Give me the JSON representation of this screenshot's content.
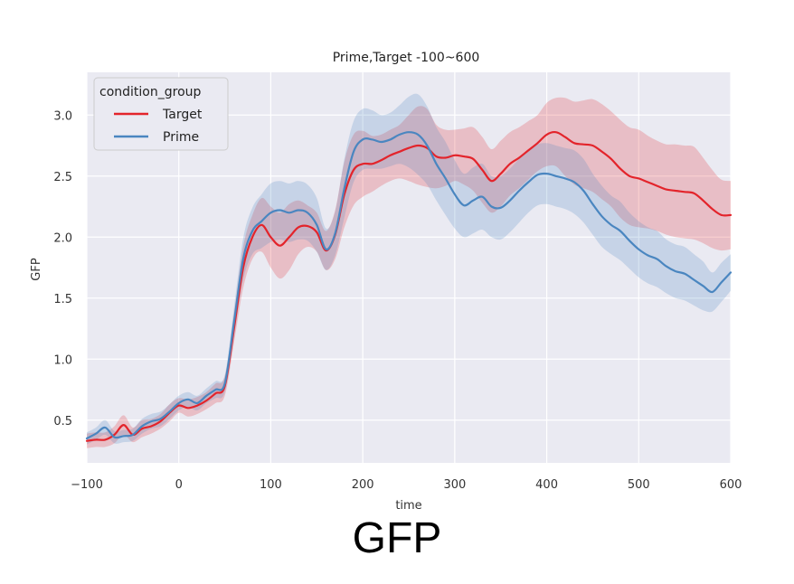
{
  "caption": "GFP",
  "chart_data": {
    "type": "line",
    "title": "Prime,Target -100~600",
    "xlabel": "time",
    "ylabel": "GFP",
    "xlim": [
      -100,
      600
    ],
    "ylim": [
      0.15,
      3.35
    ],
    "xticks": [
      -100,
      0,
      100,
      200,
      300,
      400,
      500,
      600
    ],
    "xtick_labels": [
      "−100",
      "0",
      "100",
      "200",
      "300",
      "400",
      "500",
      "600"
    ],
    "yticks": [
      0.5,
      1.0,
      1.5,
      2.0,
      2.5,
      3.0
    ],
    "ytick_labels": [
      "0.5",
      "1.0",
      "1.5",
      "2.0",
      "2.5",
      "3.0"
    ],
    "grid": true,
    "background": "#eaeaf2",
    "legend": {
      "title": "condition_group",
      "placement": "top-left"
    },
    "series": [
      {
        "name": "Target",
        "color": "#e3242b",
        "x": [
          -100,
          -90,
          -80,
          -70,
          -60,
          -50,
          -40,
          -30,
          -20,
          -10,
          0,
          10,
          20,
          30,
          40,
          50,
          60,
          70,
          80,
          90,
          100,
          110,
          120,
          130,
          140,
          150,
          160,
          170,
          180,
          190,
          200,
          210,
          220,
          230,
          240,
          250,
          260,
          270,
          280,
          290,
          300,
          310,
          320,
          330,
          340,
          350,
          360,
          370,
          380,
          390,
          400,
          410,
          420,
          430,
          440,
          450,
          460,
          470,
          480,
          490,
          500,
          510,
          520,
          530,
          540,
          550,
          560,
          570,
          580,
          590,
          600
        ],
        "values": [
          0.33,
          0.34,
          0.34,
          0.38,
          0.46,
          0.38,
          0.43,
          0.45,
          0.49,
          0.56,
          0.62,
          0.6,
          0.62,
          0.66,
          0.72,
          0.78,
          1.25,
          1.75,
          2.0,
          2.1,
          2.0,
          1.93,
          2.0,
          2.08,
          2.09,
          2.04,
          1.89,
          2.02,
          2.35,
          2.55,
          2.6,
          2.6,
          2.63,
          2.67,
          2.7,
          2.73,
          2.75,
          2.73,
          2.66,
          2.65,
          2.67,
          2.66,
          2.64,
          2.55,
          2.46,
          2.52,
          2.6,
          2.65,
          2.71,
          2.77,
          2.84,
          2.86,
          2.82,
          2.77,
          2.76,
          2.75,
          2.7,
          2.64,
          2.56,
          2.5,
          2.48,
          2.45,
          2.42,
          2.39,
          2.38,
          2.37,
          2.36,
          2.3,
          2.23,
          2.18,
          2.18
        ],
        "lower": [
          0.27,
          0.28,
          0.28,
          0.31,
          0.38,
          0.32,
          0.36,
          0.39,
          0.43,
          0.49,
          0.56,
          0.53,
          0.55,
          0.59,
          0.64,
          0.7,
          1.13,
          1.58,
          1.82,
          1.88,
          1.75,
          1.66,
          1.73,
          1.86,
          1.92,
          1.88,
          1.73,
          1.82,
          2.08,
          2.26,
          2.33,
          2.37,
          2.42,
          2.46,
          2.48,
          2.46,
          2.43,
          2.41,
          2.4,
          2.42,
          2.46,
          2.43,
          2.38,
          2.28,
          2.2,
          2.25,
          2.34,
          2.4,
          2.47,
          2.54,
          2.58,
          2.58,
          2.5,
          2.43,
          2.4,
          2.37,
          2.31,
          2.25,
          2.16,
          2.1,
          2.08,
          2.07,
          2.05,
          2.02,
          2.0,
          1.99,
          1.98,
          1.95,
          1.91,
          1.89,
          1.9
        ],
        "upper": [
          0.39,
          0.4,
          0.4,
          0.45,
          0.54,
          0.44,
          0.5,
          0.51,
          0.55,
          0.63,
          0.68,
          0.67,
          0.69,
          0.73,
          0.8,
          0.86,
          1.37,
          1.92,
          2.18,
          2.32,
          2.25,
          2.2,
          2.27,
          2.3,
          2.26,
          2.2,
          2.05,
          2.22,
          2.62,
          2.84,
          2.87,
          2.83,
          2.84,
          2.88,
          2.92,
          3.0,
          3.07,
          3.05,
          2.92,
          2.88,
          2.88,
          2.89,
          2.9,
          2.82,
          2.72,
          2.79,
          2.86,
          2.9,
          2.95,
          3.0,
          3.1,
          3.14,
          3.14,
          3.11,
          3.12,
          3.13,
          3.09,
          3.03,
          2.96,
          2.9,
          2.88,
          2.83,
          2.79,
          2.76,
          2.76,
          2.75,
          2.74,
          2.65,
          2.55,
          2.47,
          2.46
        ]
      },
      {
        "name": "Prime",
        "color": "#4a86c0",
        "x": [
          -100,
          -90,
          -80,
          -70,
          -60,
          -50,
          -40,
          -30,
          -20,
          -10,
          0,
          10,
          20,
          30,
          40,
          50,
          60,
          70,
          80,
          90,
          100,
          110,
          120,
          130,
          140,
          150,
          160,
          170,
          180,
          190,
          200,
          210,
          220,
          230,
          240,
          250,
          260,
          270,
          280,
          290,
          300,
          310,
          320,
          330,
          340,
          350,
          360,
          370,
          380,
          390,
          400,
          410,
          420,
          430,
          440,
          450,
          460,
          470,
          480,
          490,
          500,
          510,
          520,
          530,
          540,
          550,
          560,
          570,
          580,
          590,
          600
        ],
        "values": [
          0.35,
          0.39,
          0.44,
          0.36,
          0.37,
          0.38,
          0.45,
          0.49,
          0.51,
          0.57,
          0.64,
          0.67,
          0.64,
          0.7,
          0.75,
          0.8,
          1.3,
          1.82,
          2.05,
          2.13,
          2.2,
          2.22,
          2.2,
          2.22,
          2.2,
          2.1,
          1.9,
          2.03,
          2.4,
          2.7,
          2.8,
          2.8,
          2.78,
          2.8,
          2.84,
          2.86,
          2.84,
          2.75,
          2.6,
          2.48,
          2.35,
          2.26,
          2.3,
          2.33,
          2.25,
          2.24,
          2.3,
          2.38,
          2.45,
          2.51,
          2.52,
          2.5,
          2.48,
          2.45,
          2.38,
          2.27,
          2.17,
          2.1,
          2.05,
          1.97,
          1.9,
          1.85,
          1.82,
          1.76,
          1.72,
          1.7,
          1.65,
          1.6,
          1.55,
          1.63,
          1.71
        ],
        "lower": [
          0.3,
          0.34,
          0.38,
          0.31,
          0.32,
          0.33,
          0.39,
          0.43,
          0.45,
          0.51,
          0.58,
          0.61,
          0.58,
          0.64,
          0.68,
          0.73,
          1.18,
          1.65,
          1.86,
          1.91,
          1.96,
          1.98,
          1.96,
          1.98,
          1.97,
          1.88,
          1.73,
          1.85,
          2.16,
          2.45,
          2.55,
          2.56,
          2.56,
          2.58,
          2.6,
          2.57,
          2.51,
          2.43,
          2.3,
          2.18,
          2.07,
          2.0,
          2.03,
          2.06,
          2.0,
          1.98,
          2.04,
          2.12,
          2.2,
          2.26,
          2.27,
          2.25,
          2.23,
          2.19,
          2.12,
          2.02,
          1.92,
          1.86,
          1.81,
          1.74,
          1.67,
          1.62,
          1.59,
          1.54,
          1.5,
          1.48,
          1.44,
          1.4,
          1.39,
          1.47,
          1.56
        ],
        "upper": [
          0.4,
          0.44,
          0.5,
          0.41,
          0.42,
          0.43,
          0.51,
          0.55,
          0.57,
          0.63,
          0.7,
          0.73,
          0.7,
          0.76,
          0.82,
          0.87,
          1.42,
          1.99,
          2.24,
          2.35,
          2.44,
          2.46,
          2.44,
          2.46,
          2.43,
          2.32,
          2.07,
          2.21,
          2.64,
          2.95,
          3.05,
          3.04,
          3.0,
          3.02,
          3.08,
          3.15,
          3.17,
          3.07,
          2.9,
          2.78,
          2.63,
          2.52,
          2.57,
          2.6,
          2.5,
          2.5,
          2.56,
          2.64,
          2.7,
          2.76,
          2.77,
          2.75,
          2.73,
          2.71,
          2.64,
          2.52,
          2.42,
          2.34,
          2.29,
          2.2,
          2.13,
          2.08,
          2.05,
          1.98,
          1.94,
          1.92,
          1.86,
          1.8,
          1.71,
          1.79,
          1.86
        ]
      }
    ]
  }
}
